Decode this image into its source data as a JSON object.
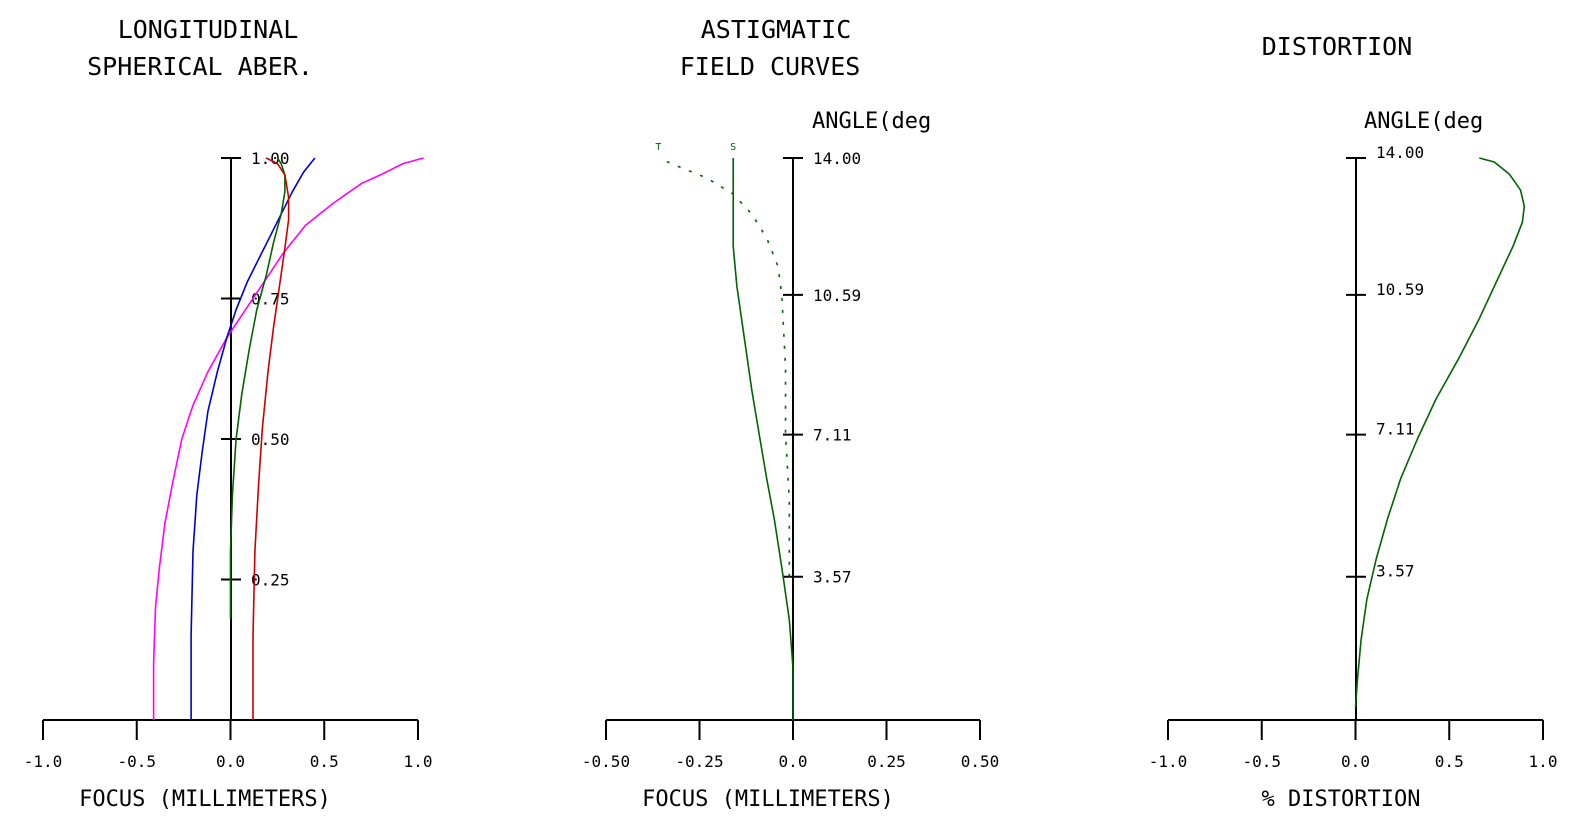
{
  "chart_data": [
    {
      "type": "line",
      "title_lines": [
        "LONGITUDINAL",
        "SPHERICAL ABER."
      ],
      "xlabel": "FOCUS (MILLIMETERS)",
      "xlim": [
        -1.0,
        1.0
      ],
      "ylim": [
        0,
        1.0
      ],
      "x_tick_labels": [
        "-1.0",
        "-0.5",
        "0.0",
        "0.5",
        "1.0"
      ],
      "x_tick_values": [
        -1.0,
        -0.5,
        0.0,
        0.5,
        1.0
      ],
      "y_tick_labels": [
        "0.25",
        "0.50",
        "0.75",
        "1.00"
      ],
      "y_tick_values": [
        0.25,
        0.5,
        0.75,
        1.0
      ],
      "series": [
        {
          "color": "#ff00ff",
          "x": [
            -0.41,
            -0.41,
            -0.4,
            -0.38,
            -0.35,
            -0.31,
            -0.26,
            -0.2,
            -0.12,
            -0.02,
            0.08,
            0.18,
            0.28,
            0.4,
            0.55,
            0.7,
            0.8,
            0.92,
            1.03
          ],
          "y": [
            0.0,
            0.1,
            0.2,
            0.27,
            0.35,
            0.42,
            0.5,
            0.56,
            0.62,
            0.68,
            0.73,
            0.78,
            0.83,
            0.88,
            0.92,
            0.955,
            0.97,
            0.99,
            1.0
          ]
        },
        {
          "color": "#0000cc",
          "x": [
            -0.21,
            -0.21,
            -0.2,
            -0.18,
            -0.15,
            -0.12,
            -0.07,
            -0.02,
            0.03,
            0.09,
            0.15,
            0.21,
            0.27,
            0.33,
            0.39,
            0.45
          ],
          "y": [
            0.0,
            0.15,
            0.3,
            0.4,
            0.48,
            0.55,
            0.62,
            0.68,
            0.73,
            0.78,
            0.82,
            0.86,
            0.9,
            0.94,
            0.975,
            1.0
          ]
        },
        {
          "color": "#006400",
          "x": [
            0.0,
            0.0,
            0.01,
            0.03,
            0.06,
            0.1,
            0.14,
            0.19,
            0.23,
            0.27,
            0.29,
            0.29,
            0.27,
            0.25
          ],
          "y": [
            0.18,
            0.3,
            0.4,
            0.5,
            0.58,
            0.66,
            0.73,
            0.79,
            0.85,
            0.9,
            0.94,
            0.97,
            0.99,
            1.0
          ]
        },
        {
          "color": "#cc0000",
          "x": [
            0.12,
            0.12,
            0.13,
            0.15,
            0.17,
            0.2,
            0.23,
            0.26,
            0.29,
            0.31,
            0.31,
            0.29,
            0.25,
            0.19
          ],
          "y": [
            0.0,
            0.15,
            0.3,
            0.42,
            0.52,
            0.62,
            0.7,
            0.77,
            0.84,
            0.89,
            0.93,
            0.97,
            0.99,
            1.0
          ]
        }
      ]
    },
    {
      "type": "line",
      "title_lines": [
        "ASTIGMATIC",
        "FIELD CURVES"
      ],
      "xlabel": "FOCUS (MILLIMETERS)",
      "ylabel": "ANGLE(deg",
      "xlim": [
        -0.5,
        0.5
      ],
      "ylim": [
        0,
        14.0
      ],
      "x_tick_labels": [
        "-0.50",
        "-0.25",
        "0.0",
        "0.25",
        "0.50"
      ],
      "x_tick_values": [
        -0.5,
        -0.25,
        0.0,
        0.25,
        0.5
      ],
      "y_tick_labels": [
        "3.57",
        "7.11",
        "10.59",
        "14.00"
      ],
      "y_tick_values": [
        3.57,
        7.11,
        10.59,
        14.0
      ],
      "series": [
        {
          "name": "S",
          "color": "#006400",
          "dash": false,
          "x": [
            0.0,
            0.0,
            -0.01,
            -0.03,
            -0.05,
            -0.07,
            -0.09,
            -0.11,
            -0.13,
            -0.15,
            -0.16,
            -0.16,
            -0.16,
            -0.16
          ],
          "y": [
            0.0,
            1.3,
            2.5,
            3.8,
            5.0,
            6.0,
            7.1,
            8.2,
            9.5,
            10.8,
            11.8,
            12.8,
            13.5,
            14.0
          ]
        },
        {
          "name": "T",
          "color": "#006400",
          "dash": true,
          "x": [
            -0.01,
            -0.01,
            -0.02,
            -0.02,
            -0.03,
            -0.04,
            -0.07,
            -0.11,
            -0.16,
            -0.23,
            -0.31,
            -0.36
          ],
          "y": [
            3.57,
            5.5,
            7.11,
            8.8,
            10.59,
            11.3,
            12.0,
            12.6,
            13.1,
            13.5,
            13.8,
            14.0
          ]
        }
      ]
    },
    {
      "type": "line",
      "title_lines": [
        "DISTORTION"
      ],
      "xlabel": "% DISTORTION",
      "ylabel": "ANGLE(deg",
      "xlim": [
        -1.0,
        1.0
      ],
      "ylim": [
        0,
        14.0
      ],
      "x_tick_labels": [
        "-1.0",
        "-0.5",
        "0.0",
        "0.5",
        "1.0"
      ],
      "x_tick_values": [
        -1.0,
        -0.5,
        0.0,
        0.5,
        1.0
      ],
      "y_tick_labels": [
        "3.57",
        "7.11",
        "10.59",
        "14.00"
      ],
      "y_tick_values": [
        3.57,
        7.11,
        10.59,
        14.0
      ],
      "series": [
        {
          "color": "#006400",
          "x": [
            0.0,
            0.01,
            0.03,
            0.06,
            0.11,
            0.17,
            0.24,
            0.33,
            0.43,
            0.55,
            0.66,
            0.76,
            0.84,
            0.89,
            0.9,
            0.88,
            0.82,
            0.74,
            0.66
          ],
          "y": [
            0.3,
            1.0,
            2.0,
            3.0,
            4.0,
            5.0,
            6.0,
            7.0,
            8.0,
            9.0,
            10.0,
            11.0,
            11.8,
            12.4,
            12.8,
            13.2,
            13.6,
            13.9,
            14.0
          ]
        }
      ]
    }
  ]
}
